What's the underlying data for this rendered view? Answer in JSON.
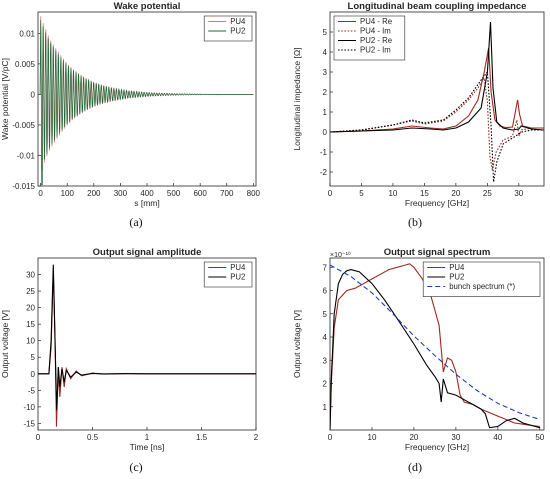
{
  "colors": {
    "pu4": "#a0291f",
    "pu2": "#000000",
    "bunch": "#1f3fc8"
  },
  "captions": [
    "(a)",
    "(b)",
    "(c)",
    "(d)"
  ],
  "chart_data": [
    {
      "type": "line",
      "title": "Wake potential",
      "xlabel": "s [mm]",
      "ylabel": "Wake potential [V/pC]",
      "xlim": [
        -10,
        810
      ],
      "ylim": [
        -0.015,
        0.0135
      ],
      "xticks": [
        "0",
        "100",
        "200",
        "300",
        "400",
        "500",
        "600",
        "700",
        "800"
      ],
      "yticks": [
        "-0.015",
        "-0.01",
        "-0.005",
        "0",
        "0.005",
        "0.01"
      ],
      "legend": "top-right",
      "series": [
        {
          "name": "PU4",
          "color": "#e07070",
          "style": "solid",
          "description_values": {
            "first_peak": 0.0128,
            "first_trough": -0.0124,
            "oscillation_period_mm": 9.5,
            "decay_length_mm": 110
          }
        },
        {
          "name": "PU2",
          "color": "#1f6a3a",
          "style": "solid",
          "description_values": {
            "first_peak": 0.0122,
            "first_trough": -0.0148,
            "oscillation_period_mm": 9.5,
            "decay_length_mm": 110
          }
        }
      ]
    },
    {
      "type": "line",
      "title": "Longitudinal beam coupling impedance",
      "xlabel": "Frequency [GHz]",
      "ylabel": "Longitudinal impedance [Ω]",
      "xlim": [
        0,
        34
      ],
      "ylim": [
        -2.7,
        6.0
      ],
      "xticks": [
        "0",
        "5",
        "10",
        "15",
        "20",
        "25",
        "30"
      ],
      "yticks": [
        "-2",
        "-1",
        "0",
        "1",
        "2",
        "3",
        "4",
        "5"
      ],
      "legend": "top-left",
      "series": [
        {
          "name": "PU4 - Re",
          "color": "#a0291f",
          "style": "solid",
          "x": [
            0,
            5,
            10,
            13,
            16,
            18,
            20,
            22,
            23.5,
            24.5,
            25.2,
            25.6,
            26.2,
            27,
            28,
            29,
            29.8,
            30.1,
            30.6,
            32,
            34
          ],
          "y": [
            0,
            0.05,
            0.15,
            0.3,
            0.2,
            0.15,
            0.3,
            0.8,
            1.6,
            3.0,
            4.2,
            2.0,
            0.6,
            0.3,
            0.22,
            0.25,
            1.6,
            0.9,
            0.3,
            0.2,
            0.2
          ]
        },
        {
          "name": "PU4 - Im",
          "color": "#a0291f",
          "style": "dotted",
          "x": [
            0,
            5,
            10,
            13,
            15,
            18,
            20,
            22,
            23.5,
            24.5,
            25,
            25.4,
            25.8,
            26.4,
            27.5,
            29,
            29.7,
            30,
            30.4,
            32,
            34
          ],
          "y": [
            0,
            0.1,
            0.35,
            0.55,
            0.4,
            0.55,
            1.0,
            1.6,
            2.2,
            2.7,
            1.5,
            -1.2,
            -1.9,
            -1.0,
            -0.4,
            -0.2,
            0.6,
            -0.2,
            0.1,
            0.2,
            0.2
          ]
        },
        {
          "name": "PU2 - Re",
          "color": "#000000",
          "style": "solid",
          "x": [
            0,
            5,
            10,
            13,
            16,
            18,
            20,
            22,
            24,
            25,
            25.5,
            25.9,
            26.5,
            27.5,
            29,
            30,
            30.4,
            32,
            34
          ],
          "y": [
            0,
            0.05,
            0.1,
            0.2,
            0.15,
            0.1,
            0.2,
            0.5,
            1.2,
            3.0,
            5.5,
            2.2,
            0.5,
            0.2,
            0.1,
            0.15,
            0.3,
            0.15,
            0.1
          ]
        },
        {
          "name": "PU2 - Im",
          "color": "#000000",
          "style": "dotted",
          "x": [
            0,
            5,
            10,
            13,
            15,
            18,
            20,
            22,
            24,
            25,
            25.6,
            26,
            26.5,
            27.5,
            29,
            30.5,
            32,
            34
          ],
          "y": [
            0,
            0.1,
            0.35,
            0.6,
            0.45,
            0.6,
            1.1,
            1.7,
            2.6,
            3.0,
            0.3,
            -2.5,
            -1.5,
            -0.6,
            -0.3,
            0.0,
            0.1,
            0.1
          ]
        }
      ]
    },
    {
      "type": "line",
      "title": "Output signal amplitude",
      "xlabel": "Time [ns]",
      "ylabel": "Output voltage [V]",
      "xlim": [
        0,
        2
      ],
      "ylim": [
        -17,
        35
      ],
      "xticks": [
        "0",
        "0.5",
        "1",
        "1.5",
        "2"
      ],
      "yticks": [
        "-15",
        "-10",
        "-5",
        "0",
        "5",
        "10",
        "15",
        "20",
        "25",
        "30"
      ],
      "legend": "top-right",
      "series": [
        {
          "name": "PU4",
          "color": "#a0291f",
          "style": "solid",
          "x": [
            0,
            0.1,
            0.12,
            0.14,
            0.155,
            0.17,
            0.185,
            0.2,
            0.22,
            0.24,
            0.26,
            0.3,
            0.35,
            0.4,
            0.5,
            0.6,
            0.8,
            1.0,
            1.5,
            2.0
          ],
          "y": [
            0,
            0,
            8,
            31,
            12,
            -16,
            2,
            -7,
            2,
            -4,
            1.5,
            -1.5,
            0.8,
            -0.6,
            0.2,
            -0.1,
            0.05,
            0,
            0,
            0
          ]
        },
        {
          "name": "PU2",
          "color": "#000000",
          "style": "solid",
          "x": [
            0,
            0.1,
            0.12,
            0.14,
            0.158,
            0.172,
            0.187,
            0.2,
            0.22,
            0.24,
            0.26,
            0.3,
            0.35,
            0.4,
            0.5,
            0.6,
            0.8,
            1.0,
            1.5,
            2.0
          ],
          "y": [
            0,
            0,
            10,
            33,
            8,
            -11,
            2,
            -4,
            1.5,
            -2.5,
            1,
            -1,
            0.5,
            -0.4,
            0.1,
            -0.05,
            0.02,
            0,
            0,
            0
          ]
        }
      ]
    },
    {
      "type": "line",
      "title": "Output signal spectrum",
      "xlabel": "Frequency [GHz]",
      "ylabel": "Output voltage [V]",
      "y_exponent_label": "×10⁻¹⁰",
      "xlim": [
        0,
        51
      ],
      "ylim": [
        0,
        7.4
      ],
      "xticks": [
        "0",
        "10",
        "20",
        "30",
        "40",
        "50"
      ],
      "yticks": [
        "1",
        "2",
        "3",
        "4",
        "5",
        "6",
        "7"
      ],
      "legend": "top-right",
      "series": [
        {
          "name": "PU4",
          "color": "#a0291f",
          "style": "solid",
          "x": [
            0,
            0.3,
            1,
            2,
            4,
            6,
            8,
            10,
            12,
            14,
            16,
            18,
            19,
            20,
            22,
            24,
            26,
            27,
            28,
            29,
            30,
            31,
            32,
            34,
            36,
            38,
            40,
            42,
            44,
            46,
            48,
            50
          ],
          "y": [
            0,
            2.0,
            4.4,
            5.6,
            6.0,
            6.1,
            6.3,
            6.5,
            6.7,
            6.9,
            7.0,
            7.1,
            7.15,
            7.0,
            6.5,
            5.8,
            4.5,
            2.5,
            3.1,
            3.0,
            2.5,
            1.5,
            1.2,
            1.1,
            0.9,
            0.75,
            0.6,
            0.45,
            0.3,
            0.25,
            0.2,
            0.15
          ]
        },
        {
          "name": "PU2",
          "color": "#000000",
          "style": "solid",
          "x": [
            0,
            0.3,
            1,
            2,
            3,
            4,
            5,
            7,
            10,
            13,
            16,
            20,
            23,
            25,
            26,
            26.5,
            27,
            28,
            30,
            32,
            34,
            36,
            37,
            38,
            40,
            42,
            44,
            46,
            48,
            50
          ],
          "y": [
            0,
            2.2,
            5.0,
            6.3,
            6.7,
            6.85,
            6.9,
            6.8,
            6.3,
            5.6,
            4.8,
            3.7,
            2.8,
            2.3,
            2.0,
            1.2,
            2.2,
            1.6,
            1.5,
            1.3,
            1.1,
            0.9,
            0.7,
            0.1,
            0.15,
            0.4,
            0.5,
            0.3,
            0.2,
            0.1
          ]
        },
        {
          "name": "bunch spectrum (*)",
          "color": "#1f3fc8",
          "style": "dashed",
          "x": [
            0,
            5,
            10,
            15,
            20,
            25,
            30,
            35,
            40,
            45,
            50
          ],
          "y": [
            7.1,
            6.6,
            5.9,
            5.0,
            4.05,
            3.2,
            2.4,
            1.7,
            1.15,
            0.75,
            0.45
          ]
        }
      ]
    }
  ]
}
